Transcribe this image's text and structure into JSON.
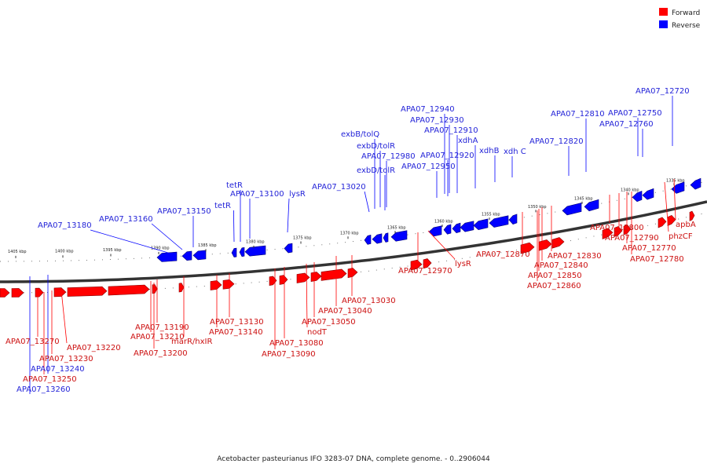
{
  "caption": "Acetobacter pasteurianus IFO 3283-07 DNA, complete genome. - 0..2906044",
  "legend": [
    {
      "label": "Forward",
      "color": "#ff0000"
    },
    {
      "label": "Reverse",
      "color": "#0000ff"
    }
  ],
  "colors": {
    "forward": "#ff0000",
    "reverse": "#0000ff",
    "backbone": "#555555",
    "forward_label": "#cc1010",
    "reverse_label": "#2424d8"
  },
  "kbp_ticks": [
    "1405 kbp",
    "1400 kbp",
    "1395 kbp",
    "1390 kbp",
    "1385 kbp",
    "1380 kbp",
    "1375 kbp",
    "1370 kbp",
    "1365 kbp",
    "1360 kbp",
    "1355 kbp",
    "1350 kbp",
    "1345 kbp",
    "1340 kbp",
    "1335 kbp"
  ],
  "reverse_labels": [
    "APA07_12720",
    "APA07_12750",
    "APA07_12760",
    "APA07_12810",
    "APA07_12820",
    "APA07_12940",
    "APA07_12930",
    "APA07_12910",
    "xdhA",
    "xdhB",
    "xdh C",
    "APA07_12920",
    "APA07_12950",
    "exbB/tolQ",
    "exbD/tolR",
    "APA07_12980",
    "exbD/tolR",
    "APA07_13020",
    "tetR",
    "APA07_13100",
    "lysR",
    "tetR",
    "APA07_13160",
    "APA07_13150",
    "APA07_13180",
    "APA07_13240",
    "APA07_13260"
  ],
  "forward_labels": [
    "apbA",
    "phzCF",
    "APA07_12800",
    "APA07_12790",
    "APA07_12770",
    "APA07_12780",
    "APA07_12870",
    "APA07_12830",
    "APA07_12840",
    "APA07_12850",
    "APA07_12860",
    "APA07_12970",
    "lysR",
    "APA07_13030",
    "APA07_13040",
    "APA07_13050",
    "nodT",
    "APA07_13080",
    "APA07_13090",
    "APA07_13130",
    "APA07_13140",
    "APA07_13190",
    "APA07_13210",
    "marR/hxIR",
    "APA07_13200",
    "APA07_13270",
    "APA07_13220",
    "APA07_13230",
    "APA07_13250"
  ]
}
